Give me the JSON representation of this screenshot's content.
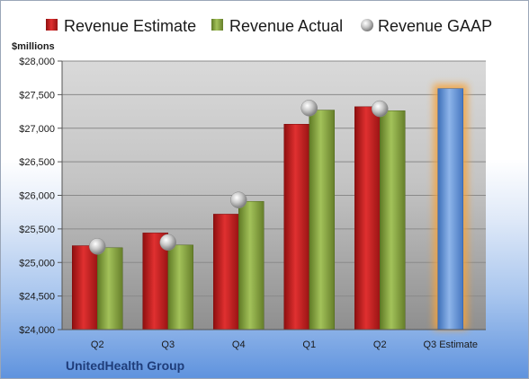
{
  "chart_data": {
    "type": "bar",
    "categories": [
      "Q2",
      "Q3",
      "Q4",
      "Q1",
      "Q2",
      "Q3 Estimate"
    ],
    "series": [
      {
        "name": "Revenue Estimate",
        "color": "#cc1f1f",
        "values": [
          25250,
          25440,
          25720,
          27060,
          27320,
          27590
        ]
      },
      {
        "name": "Revenue Actual",
        "color": "#8aaa3c",
        "values": [
          25220,
          25260,
          25910,
          27270,
          27260,
          null
        ]
      },
      {
        "name": "Revenue GAAP",
        "color": "#b8b8b8",
        "values": [
          25240,
          25300,
          25930,
          27300,
          27290,
          null
        ]
      }
    ],
    "highlight_bar": {
      "category": "Q3 Estimate",
      "color": "#6b9ad8",
      "glow": "#f5a33b"
    },
    "ylabel": "$millions",
    "ylim": [
      24000,
      28000
    ],
    "yticks": [
      24000,
      24500,
      25000,
      25500,
      26000,
      26500,
      27000,
      27500,
      28000
    ],
    "ytick_labels": [
      "$24,000",
      "$24,500",
      "$25,000",
      "$25,500",
      "$26,000",
      "$26,500",
      "$27,000",
      "$27,500",
      "$28,000"
    ],
    "grid": true,
    "legend_position": "top"
  },
  "footer": {
    "company": "UnitedHealth Group"
  }
}
